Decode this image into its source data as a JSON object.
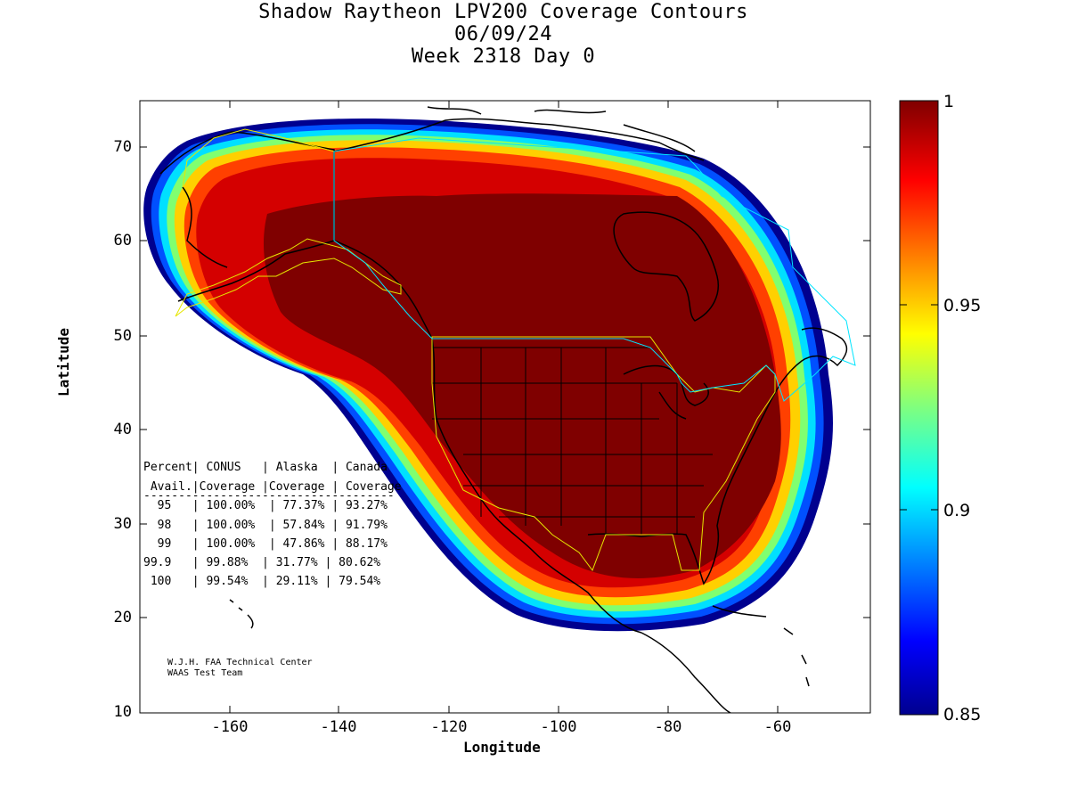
{
  "title": {
    "line1": "Shadow Raytheon LPV200 Coverage Contours",
    "line2": "06/09/24",
    "line3": "Week 2318 Day 0"
  },
  "axes": {
    "xlabel": "Longitude",
    "ylabel": "Latitude",
    "x_ticks": [
      "-160",
      "-140",
      "-120",
      "-100",
      "-80",
      "-60"
    ],
    "y_ticks": [
      "70",
      "60",
      "50",
      "40",
      "30",
      "20",
      "10"
    ],
    "xlim": [
      -175,
      -50
    ],
    "ylim": [
      10,
      75
    ]
  },
  "colorbar": {
    "labels": [
      "1",
      "0.95",
      "0.9",
      "0.85"
    ],
    "range": [
      0.85,
      1
    ],
    "colormap": "jet"
  },
  "table": {
    "header1": "Percent| CONUS   | Alaska  | Canada",
    "header2": " Avail.|Coverage |Coverage | Coverage",
    "divider": "------------------------------------",
    "rows": [
      "  95   | 100.00%  | 77.37% | 93.27%",
      "  98   | 100.00%  | 57.84% | 91.79%",
      "  99   | 100.00%  | 47.86% | 88.17%",
      "99.9   | 99.88%  | 31.77% | 80.62%",
      " 100   | 99.54%  | 29.11% | 79.54%"
    ]
  },
  "credits": {
    "line1": "W.J.H. FAA Technical Center",
    "line2": "WAAS Test Team"
  },
  "chart_data": {
    "type": "heatmap",
    "title": "Shadow Raytheon LPV200 Coverage Contours",
    "xlabel": "Longitude",
    "ylabel": "Latitude",
    "xlim": [
      -175,
      -50
    ],
    "ylim": [
      10,
      75
    ],
    "value_range": [
      0.85,
      1
    ],
    "coverage_table": {
      "columns": [
        "Percent Avail.",
        "CONUS Coverage",
        "Alaska Coverage",
        "Canada Coverage"
      ],
      "rows": [
        [
          "95",
          "100.00%",
          "77.37%",
          "93.27%"
        ],
        [
          "98",
          "100.00%",
          "57.84%",
          "91.79%"
        ],
        [
          "99",
          "100.00%",
          "47.86%",
          "88.17%"
        ],
        [
          "99.9",
          "99.88%",
          "31.77%",
          "80.62%"
        ],
        [
          "100",
          "99.54%",
          "29.11%",
          "79.54%"
        ]
      ]
    }
  },
  "colors": {
    "full_coverage": "#7f0000",
    "conus_boundary": "#ffff00",
    "canada_boundary": "#00e5ff"
  }
}
